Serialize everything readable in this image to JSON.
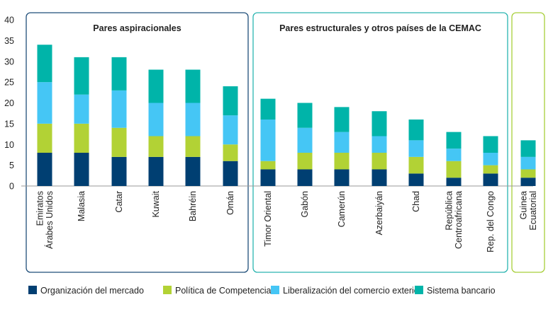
{
  "chart_data": {
    "type": "bar",
    "stacked": true,
    "ylim": [
      0,
      40
    ],
    "yticks": [
      0,
      5,
      10,
      15,
      20,
      25,
      30,
      35,
      40
    ],
    "grid": false,
    "legend_position": "bottom",
    "categories": [
      [
        "Emiratos",
        "Árabes Unidos"
      ],
      [
        "Malasia"
      ],
      [
        "Catar"
      ],
      [
        "Kuwait"
      ],
      [
        "Bahréin"
      ],
      [
        "Omán"
      ],
      [
        "Timor Oriental"
      ],
      [
        "Gabón"
      ],
      [
        "Camerún"
      ],
      [
        "Azerbaiyán"
      ],
      [
        "Chad"
      ],
      [
        "República",
        "Centroafricana"
      ],
      [
        "Rep. del Congo"
      ],
      [
        "Guinea",
        "Ecuatorial"
      ]
    ],
    "groups": [
      {
        "title": "Pares aspiracionales",
        "count": 6,
        "color": "#1f4e79"
      },
      {
        "title": "Pares estructurales y otros países de la CEMAC",
        "count": 7,
        "color": "#2ab5b0"
      },
      {
        "title": "",
        "count": 1,
        "color": "#a8cf3a"
      }
    ],
    "series": [
      {
        "name": "Organización del mercado",
        "color": "#003f72",
        "values": [
          8,
          8,
          7,
          7,
          7,
          6,
          4,
          4,
          4,
          4,
          3,
          2,
          3,
          2
        ]
      },
      {
        "name": "Política de Competencia",
        "color": "#b2d235",
        "values": [
          7,
          7,
          7,
          5,
          5,
          4,
          2,
          4,
          4,
          4,
          4,
          4,
          2,
          2
        ]
      },
      {
        "name": "Liberalización del comercio exterior",
        "color": "#45c6f5",
        "values": [
          10,
          7,
          9,
          8,
          8,
          7,
          10,
          6,
          5,
          4,
          4,
          3,
          3,
          3
        ]
      },
      {
        "name": "Sistema bancario",
        "color": "#00b4a9",
        "values": [
          9,
          9,
          8,
          8,
          8,
          7,
          5,
          6,
          6,
          6,
          5,
          4,
          4,
          4
        ]
      }
    ]
  }
}
